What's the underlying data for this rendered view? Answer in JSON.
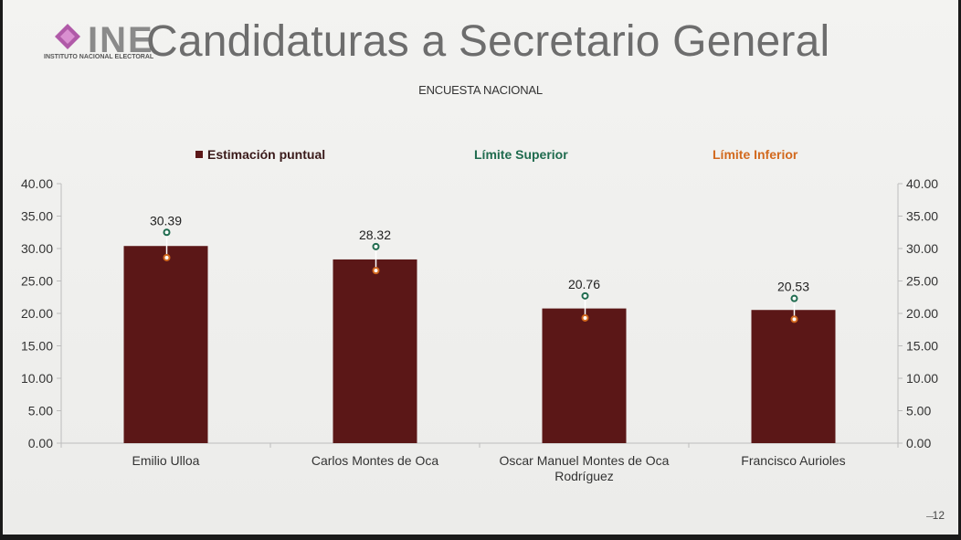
{
  "header": {
    "logo_text": "INE",
    "logo_subtext": "INSTITUTO NACIONAL ELECTORAL",
    "title": "Candidaturas a Secretario General",
    "subtitle": "ENCUESTA NACIONAL"
  },
  "legend": {
    "point": "Estimación puntual",
    "upper": "Límite Superior",
    "lower": "Límite Inferior"
  },
  "page_number": "12",
  "colors": {
    "bar": "#5b1717",
    "upper": "#1f6b4e",
    "lower": "#d2691e",
    "axis": "#bdbdbd"
  },
  "chart_data": {
    "type": "bar",
    "title": "Candidaturas a Secretario General",
    "subtitle": "ENCUESTA NACIONAL",
    "categories": [
      [
        "Emilio Ulloa"
      ],
      [
        "Carlos Montes de Oca"
      ],
      [
        "Oscar Manuel Montes de Oca",
        "Rodríguez"
      ],
      [
        "Francisco Aurioles"
      ]
    ],
    "series": [
      {
        "name": "Estimación puntual",
        "values": [
          30.39,
          28.32,
          20.76,
          20.53
        ]
      },
      {
        "name": "Límite Superior",
        "values": [
          32.5,
          30.3,
          22.7,
          22.3
        ]
      },
      {
        "name": "Límite Inferior",
        "values": [
          28.6,
          26.6,
          19.3,
          19.1
        ]
      }
    ],
    "data_labels": [
      "30.39",
      "28.32",
      "20.76",
      "20.53"
    ],
    "y_ticks": [
      "0.00",
      "5.00",
      "10.00",
      "15.00",
      "20.00",
      "25.00",
      "30.00",
      "35.00",
      "40.00"
    ],
    "ylim": [
      0,
      40
    ],
    "secondary_axis": true,
    "grid": false,
    "legend_position": "top"
  }
}
